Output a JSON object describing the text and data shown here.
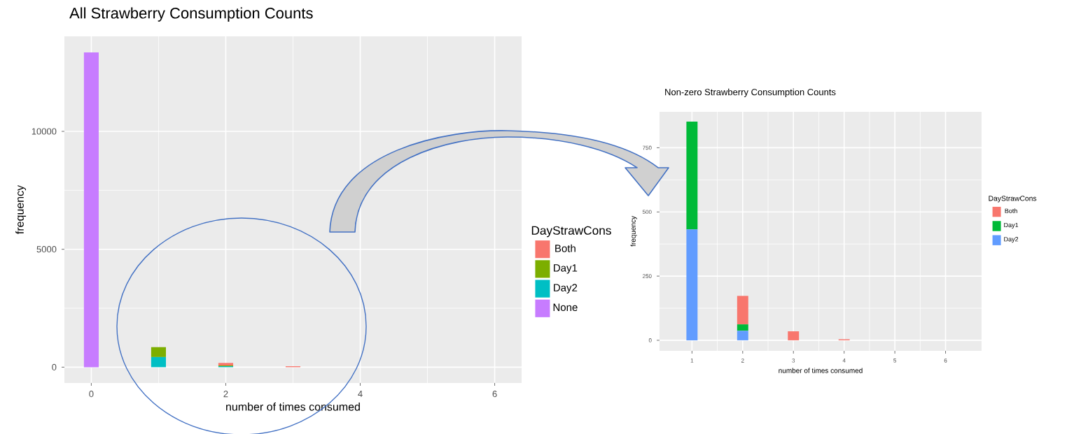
{
  "chart_data": [
    {
      "type": "bar",
      "stacked": true,
      "title": "All Strawberry Consumption Counts",
      "xlabel": "number of times consumed",
      "ylabel": "frequency",
      "legend_title": "DayStrawCons",
      "legend": "right",
      "grid": true,
      "x": [
        0,
        1,
        2,
        3,
        4,
        5,
        6
      ],
      "series": [
        {
          "name": "None",
          "color": "#c77cff",
          "values": [
            13350,
            0,
            0,
            0,
            0,
            0,
            0
          ]
        },
        {
          "name": "Day2",
          "color": "#00bfc4",
          "values": [
            0,
            430,
            40,
            0,
            0,
            0,
            0
          ]
        },
        {
          "name": "Day1",
          "color": "#7cae00",
          "values": [
            0,
            420,
            30,
            0,
            0,
            0,
            0
          ]
        },
        {
          "name": "Both",
          "color": "#f8766d",
          "values": [
            0,
            0,
            110,
            40,
            0,
            0,
            0
          ]
        }
      ],
      "xlim": [
        -0.4,
        6.4
      ],
      "ylim": [
        -670,
        14030
      ],
      "xticks": [
        0,
        2,
        4,
        6
      ],
      "yticks": [
        0,
        5000,
        10000
      ]
    },
    {
      "type": "bar",
      "stacked": true,
      "title": "Non-zero Strawberry Consumption Counts",
      "xlabel": "number of times consumed",
      "ylabel": "frequency",
      "legend_title": "DayStrawCons",
      "legend": "right",
      "grid": true,
      "x": [
        1,
        2,
        3,
        4,
        5,
        6
      ],
      "series": [
        {
          "name": "Day2",
          "color": "#619cff",
          "values": [
            432,
            37,
            0,
            0,
            0,
            0
          ]
        },
        {
          "name": "Day1",
          "color": "#00ba38",
          "values": [
            420,
            25,
            0,
            0,
            0,
            0
          ]
        },
        {
          "name": "Both",
          "color": "#f8766d",
          "values": [
            0,
            111,
            35,
            4,
            0,
            null
          ]
        }
      ],
      "xlim": [
        0.36,
        6.71
      ],
      "ylim": [
        -41,
        890
      ],
      "xticks": [
        1,
        2,
        3,
        4,
        5,
        6
      ],
      "yticks": [
        0,
        250,
        500,
        750
      ]
    }
  ]
}
